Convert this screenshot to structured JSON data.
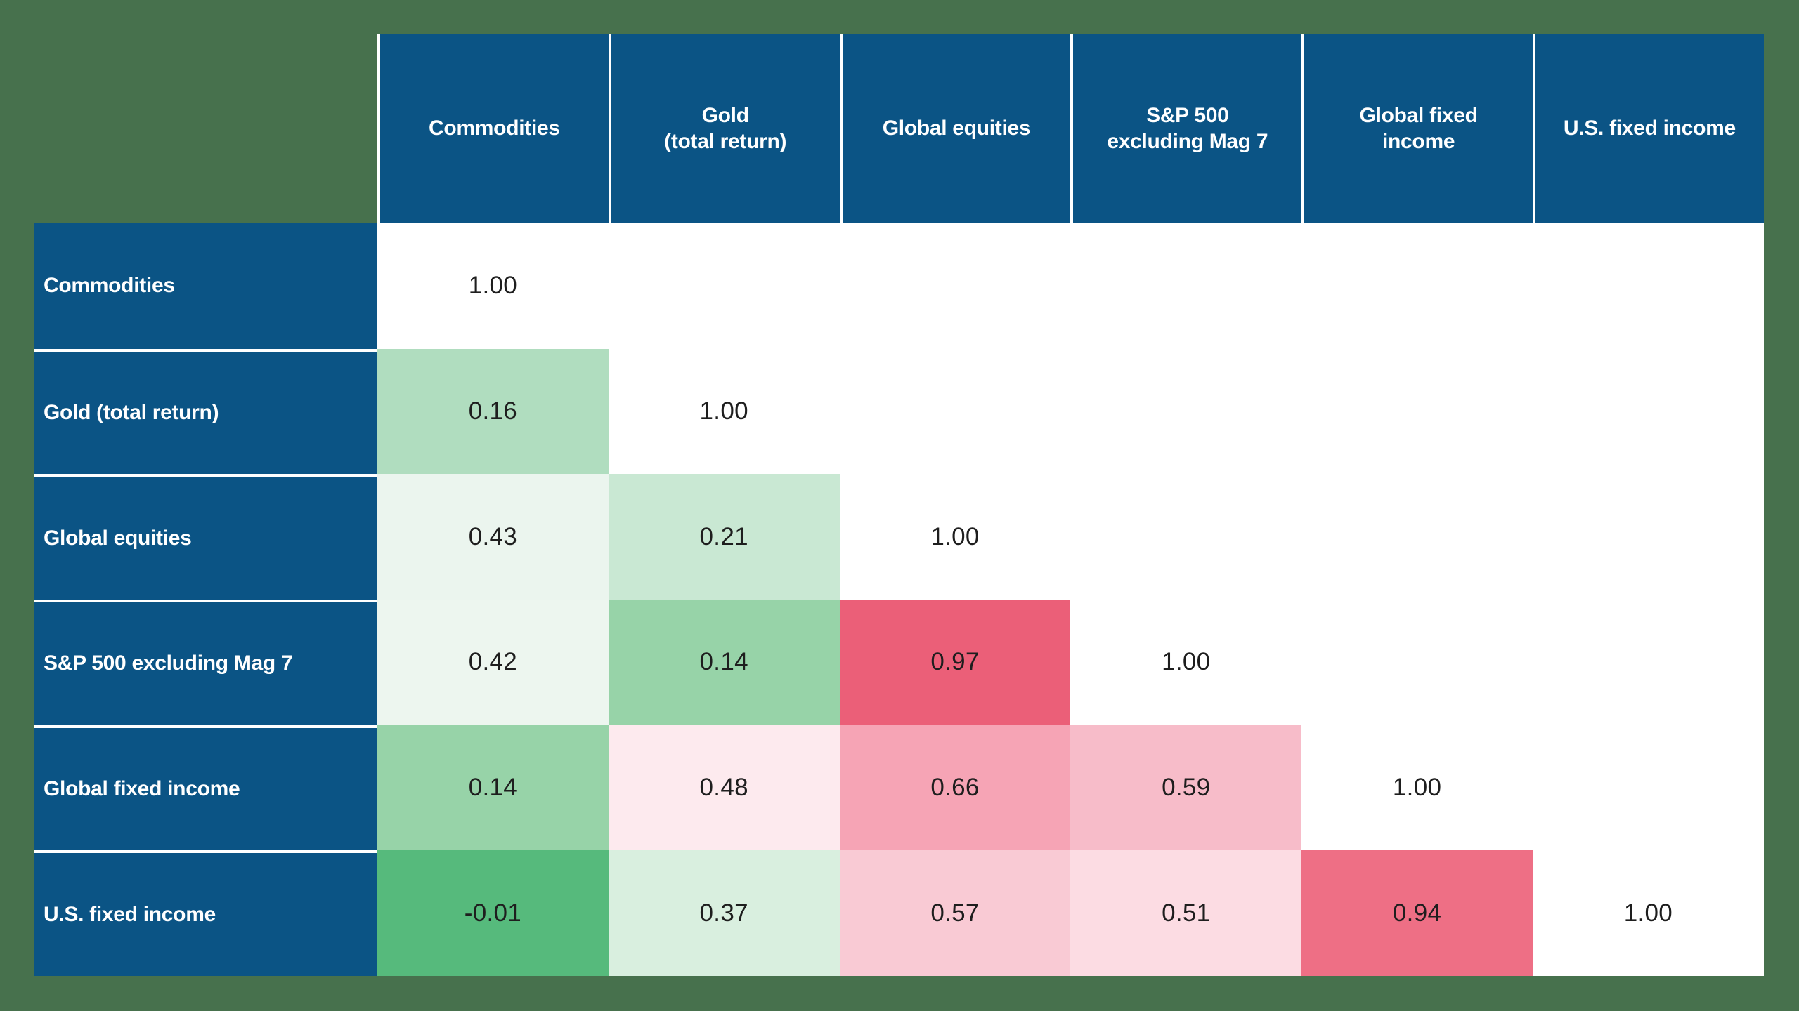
{
  "page": {
    "background_color": "#47714d",
    "data_area_color": "#ffffff",
    "grid_line_color": "#ffffff",
    "value_text_color": "#1e1e1e"
  },
  "palette": {
    "header_blue": "#0b5485",
    "strong_red": "#eb5f78",
    "strong_green": "#56ba7c"
  },
  "chart_data": {
    "type": "heatmap",
    "rows": [
      "Commodities",
      "Gold (total return)",
      "Global equities",
      "S&P 500 excluding Mag 7",
      "Global fixed income",
      "U.S. fixed income"
    ],
    "cols": [
      "Commodities",
      "Gold (total return)",
      "Global equities",
      "S&P 500 excluding Mag 7",
      "Global fixed income",
      "U.S. fixed income"
    ],
    "values": [
      [
        1.0,
        null,
        null,
        null,
        null,
        null
      ],
      [
        0.16,
        1.0,
        null,
        null,
        null,
        null
      ],
      [
        0.43,
        0.21,
        1.0,
        null,
        null,
        null
      ],
      [
        0.42,
        0.14,
        0.97,
        1.0,
        null,
        null
      ],
      [
        0.14,
        0.48,
        0.66,
        0.59,
        1.0,
        null
      ],
      [
        -0.01,
        0.37,
        0.57,
        0.51,
        0.94,
        1.0
      ]
    ],
    "value_format": "two_decimals",
    "layout": "lower_triangle",
    "legend": "none",
    "color_encoding": {
      "low_or_negative": "green",
      "mid_around_0.45": "white",
      "high": "red_pink",
      "diagonal": "white"
    }
  },
  "matrix": {
    "corner_label": "",
    "col_headers": [
      {
        "label": "Commodities"
      },
      {
        "label": "Gold\n(total return)"
      },
      {
        "label": "Global equities"
      },
      {
        "label": "S&P 500\nexcluding Mag 7"
      },
      {
        "label": "Global fixed\nincome"
      },
      {
        "label": "U.S. fixed income"
      }
    ],
    "rows": [
      {
        "label": "Commodities",
        "cells": [
          {
            "v": "1.00",
            "bg": "#ffffff"
          }
        ]
      },
      {
        "label": "Gold (total return)",
        "cells": [
          {
            "v": "0.16",
            "bg": "#b0ddbf"
          },
          {
            "v": "1.00",
            "bg": "#ffffff"
          }
        ]
      },
      {
        "label": "Global equities",
        "cells": [
          {
            "v": "0.43",
            "bg": "#ebf5ee"
          },
          {
            "v": "0.21",
            "bg": "#c9e8d3"
          },
          {
            "v": "1.00",
            "bg": "#ffffff"
          }
        ]
      },
      {
        "label": "S&P 500 excluding Mag 7",
        "cells": [
          {
            "v": "0.42",
            "bg": "#edf6ef"
          },
          {
            "v": "0.14",
            "bg": "#97d3a8"
          },
          {
            "v": "0.97",
            "bg": "#eb5f78"
          },
          {
            "v": "1.00",
            "bg": "#ffffff"
          }
        ]
      },
      {
        "label": "Global fixed income",
        "cells": [
          {
            "v": "0.14",
            "bg": "#97d3a8"
          },
          {
            "v": "0.48",
            "bg": "#fdeaee"
          },
          {
            "v": "0.66",
            "bg": "#f6a4b5"
          },
          {
            "v": "0.59",
            "bg": "#f7bcc9"
          },
          {
            "v": "1.00",
            "bg": "#ffffff"
          }
        ]
      },
      {
        "label": "U.S. fixed income",
        "cells": [
          {
            "v": "-0.01",
            "bg": "#56ba7c"
          },
          {
            "v": "0.37",
            "bg": "#d9efdf"
          },
          {
            "v": "0.57",
            "bg": "#f9cad4"
          },
          {
            "v": "0.51",
            "bg": "#fcdce3"
          },
          {
            "v": "0.94",
            "bg": "#ee6f85"
          },
          {
            "v": "1.00",
            "bg": "#ffffff"
          }
        ]
      }
    ]
  }
}
